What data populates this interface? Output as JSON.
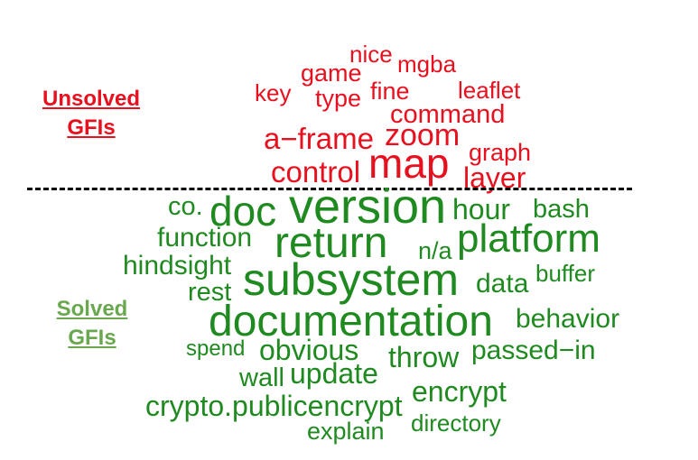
{
  "colors": {
    "unsolved": "#e8101e",
    "solved": "#1f8a1f",
    "solved_label": "#6aa84f",
    "divider": "#000000"
  },
  "labels": {
    "unsolved": [
      "Unsolved",
      "GFIs"
    ],
    "solved": [
      "Solved",
      "GFIs"
    ]
  },
  "unsolved_words": [
    "nice",
    "mgba",
    "game",
    "key",
    "type",
    "fine",
    "leaflet",
    "command",
    "a−frame",
    "zoom",
    "graph",
    "control",
    "map",
    "layer"
  ],
  "solved_words": [
    "co.",
    "doc",
    "version",
    "hour",
    "bash",
    "function",
    "return",
    "n/a",
    "platform",
    "hindsight",
    "subsystem",
    "data",
    "buffer",
    "rest",
    "documentation",
    "behavior",
    "spend",
    "obvious",
    "throw",
    "passed−in",
    "wall",
    "update",
    "crypto.publicencrypt",
    "encrypt",
    "explain",
    "directory"
  ]
}
